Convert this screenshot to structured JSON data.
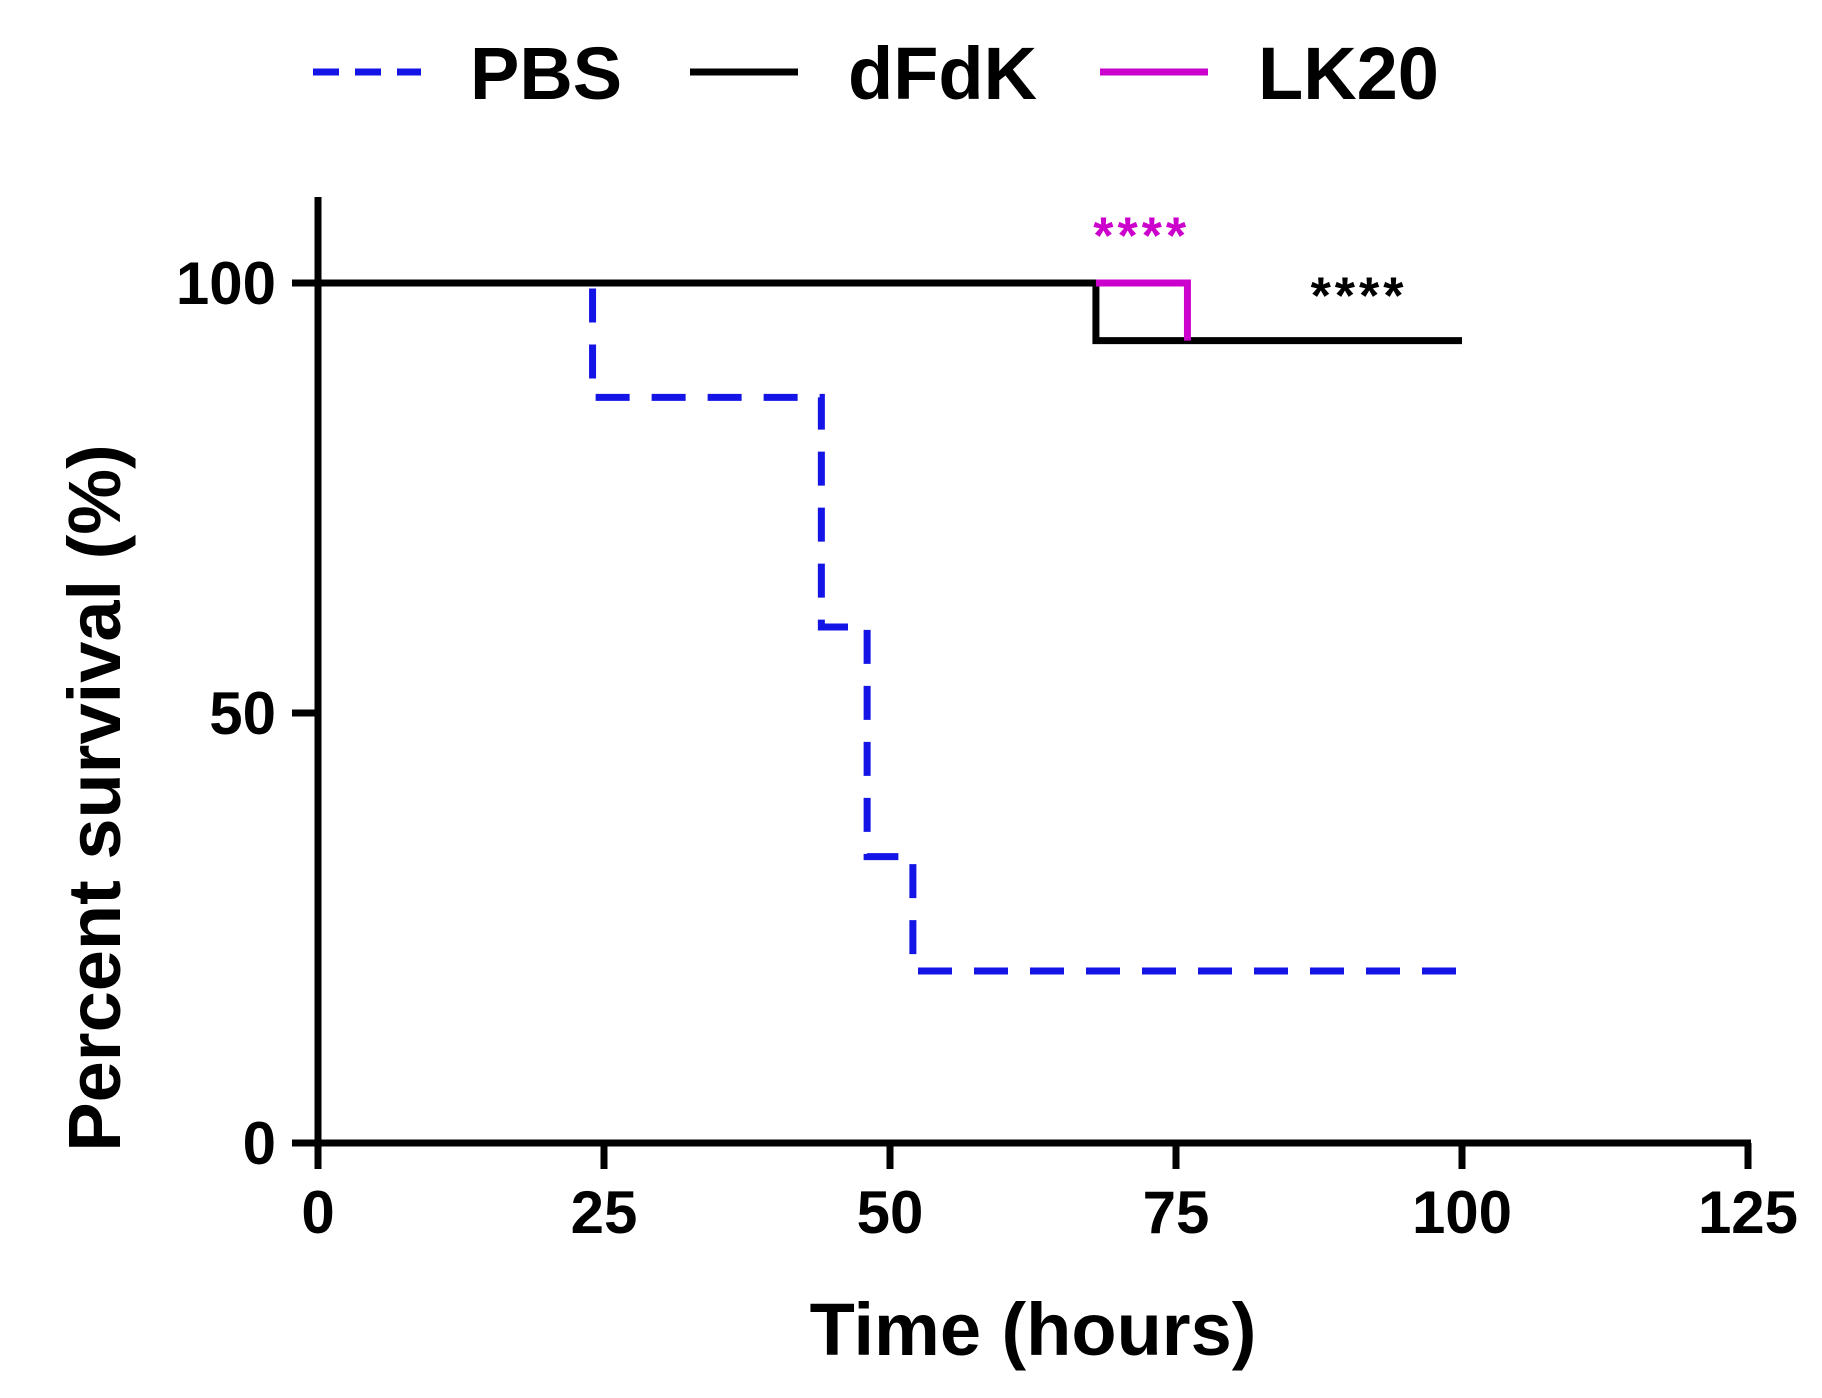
{
  "chart_data": {
    "type": "line",
    "subtype": "survival-step",
    "title": "",
    "xlabel": "Time (hours)",
    "ylabel": "Percent survival (%)",
    "xlim": [
      0,
      125
    ],
    "ylim": [
      0,
      110
    ],
    "x_ticks": [
      "0",
      "25",
      "50",
      "75",
      "100",
      "125"
    ],
    "y_ticks": [
      "0",
      "50",
      "100"
    ],
    "grid": false,
    "legend_position": "top",
    "series": [
      {
        "name": "PBS",
        "color": "#1414e6",
        "style": "dashed",
        "x": [
          0,
          24,
          24,
          44,
          44,
          48,
          48,
          52,
          52,
          100
        ],
        "y": [
          100,
          100,
          86.7,
          86.7,
          60,
          60,
          33.3,
          33.3,
          20,
          20
        ]
      },
      {
        "name": "dFdK",
        "color": "#000000",
        "style": "solid",
        "x": [
          0,
          68,
          68,
          100
        ],
        "y": [
          100,
          100,
          93.3,
          93.3
        ]
      },
      {
        "name": "LK20",
        "color": "#cc00cc",
        "style": "solid",
        "x": [
          68,
          76,
          76
        ],
        "y": [
          100,
          100,
          93.3
        ]
      }
    ],
    "annotations": [
      {
        "text": "****",
        "color": "#cc00cc",
        "x": 72,
        "y": 106
      },
      {
        "text": "****",
        "color": "#000000",
        "x": 91,
        "y": 99
      }
    ]
  }
}
